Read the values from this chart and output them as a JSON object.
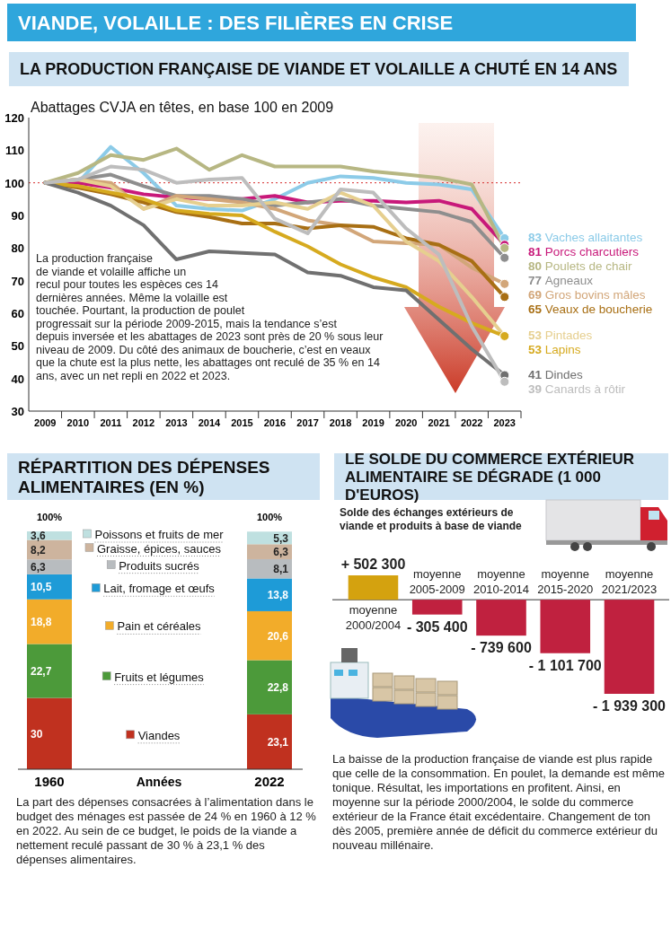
{
  "chart_data": [
    {
      "type": "line",
      "title": "VIANDE, VOLAILLE : DES FILIÈRES EN CRISE",
      "subtitle": "LA PRODUCTION FRANÇAISE DE VIANDE ET VOLAILLE A CHUTÉ EN 14 ANS",
      "ylabel": "Abattages CVJA en têtes, en base 100 en 2009",
      "categories": [
        "2009",
        "2010",
        "2011",
        "2012",
        "2013",
        "2014",
        "2015",
        "2016",
        "2017",
        "2018",
        "2019",
        "2020",
        "2021",
        "2022",
        "2023"
      ],
      "ylim": [
        30,
        120
      ],
      "yticks": [
        30,
        40,
        50,
        60,
        70,
        80,
        90,
        100,
        110,
        120
      ],
      "legend": "right",
      "ref_lines": [
        {
          "axis": "y",
          "value": 100,
          "color": "#d62d2d",
          "line_style": "dotted"
        }
      ],
      "series": [
        {
          "name": "Vaches allaitantes",
          "color": "#8ccbe8",
          "values": [
            100,
            100,
            111,
            103,
            93,
            92,
            91.5,
            95,
            100,
            102,
            101.5,
            100,
            99.5,
            98,
            83
          ],
          "value_labels": [
            null,
            null,
            null,
            null,
            null,
            null,
            null,
            null,
            null,
            null,
            null,
            null,
            null,
            null,
            "83"
          ]
        },
        {
          "name": "Porcs charcutiers",
          "color": "#c8197a",
          "values": [
            100,
            100,
            98.5,
            96.5,
            95.5,
            95,
            95,
            96,
            94,
            94.5,
            94.5,
            94,
            94.5,
            92,
            81
          ],
          "value_labels": [
            null,
            null,
            null,
            null,
            null,
            null,
            null,
            null,
            null,
            null,
            null,
            null,
            null,
            null,
            "81"
          ]
        },
        {
          "name": "Poulets de chair",
          "color": "#b7b783",
          "values": [
            100,
            103,
            108.5,
            107,
            110.5,
            104,
            108.5,
            105,
            105,
            105,
            103.5,
            102.5,
            101.5,
            99.5,
            80
          ],
          "value_labels": [
            null,
            null,
            null,
            null,
            null,
            null,
            null,
            null,
            null,
            null,
            null,
            null,
            null,
            null,
            "80"
          ]
        },
        {
          "name": "Agneaux",
          "color": "#8e8e8e",
          "values": [
            100,
            101,
            102.5,
            99,
            96,
            96,
            95,
            93,
            94,
            95,
            93,
            92,
            91,
            88,
            77
          ],
          "value_labels": [
            null,
            null,
            null,
            null,
            null,
            null,
            null,
            null,
            null,
            null,
            null,
            null,
            null,
            null,
            "77"
          ]
        },
        {
          "name": "Gros bovins mâles",
          "color": "#d2a679",
          "values": [
            100,
            101,
            100,
            92,
            96,
            95,
            94,
            92,
            88.5,
            87,
            82,
            81.5,
            81,
            74,
            69
          ],
          "value_labels": [
            null,
            null,
            null,
            null,
            null,
            null,
            null,
            null,
            null,
            null,
            null,
            null,
            null,
            null,
            "69"
          ]
        },
        {
          "name": "Veaux de boucherie",
          "color": "#a86f14",
          "values": [
            100,
            98.5,
            96.5,
            94,
            91,
            89.5,
            87.5,
            87.5,
            86,
            87,
            86.5,
            83,
            81,
            76,
            65
          ],
          "value_labels": [
            null,
            null,
            null,
            null,
            null,
            null,
            null,
            null,
            null,
            null,
            null,
            null,
            null,
            null,
            "65"
          ]
        },
        {
          "name": "Pintades",
          "color": "#e6cf8f",
          "values": [
            100,
            101,
            99,
            92,
            95,
            93,
            93,
            94,
            92,
            97,
            93,
            82,
            76,
            65,
            53
          ],
          "value_labels": [
            null,
            null,
            null,
            null,
            null,
            null,
            null,
            null,
            null,
            null,
            null,
            null,
            null,
            null,
            "53"
          ]
        },
        {
          "name": "Lapins",
          "color": "#d6aa1f",
          "values": [
            100,
            99,
            97,
            95,
            91.5,
            90.5,
            90,
            85,
            80.5,
            75,
            71,
            68,
            62,
            57,
            53
          ],
          "value_labels": [
            null,
            null,
            null,
            null,
            null,
            null,
            null,
            null,
            null,
            null,
            null,
            null,
            null,
            null,
            "53"
          ]
        },
        {
          "name": "Dindes",
          "color": "#707070",
          "values": [
            100,
            97,
            93,
            87,
            76.5,
            79,
            78.5,
            78,
            72.5,
            71.5,
            68,
            67,
            58,
            49,
            41
          ],
          "value_labels": [
            null,
            null,
            null,
            null,
            null,
            null,
            null,
            null,
            null,
            null,
            null,
            null,
            null,
            null,
            "41"
          ]
        },
        {
          "name": "Canards à rôtir",
          "color": "#bdbdbd",
          "values": [
            100,
            101,
            105,
            104,
            100,
            101,
            101.5,
            89,
            84.5,
            98,
            97,
            86,
            78,
            56,
            39
          ],
          "value_labels": [
            null,
            null,
            null,
            null,
            null,
            null,
            null,
            null,
            null,
            null,
            null,
            null,
            null,
            null,
            "39"
          ]
        }
      ],
      "annotations": [
        "La production française de viande et volaille affiche un recul pour toutes les espèces ces 14 dernières années. Même la volaille est touchée. Pourtant, la production de poulet progressait sur la période 2009-2015, mais la tendance s’est depuis inversée et les abattages de 2023 sont près de 20 % sous leur niveau de 2009. Du côté des animaux de boucherie, c’est en veaux que la chute est la plus nette, les abattages ont reculé de 35 % en 14 ans, avec un net repli en 2022 et 2023."
      ]
    },
    {
      "type": "bar",
      "stacked": true,
      "title": "RÉPARTITION DES DÉPENSES ALIMENTAIRES (EN %)",
      "xlabel": "Années",
      "legend": "center",
      "categories": [
        "1960",
        "2022"
      ],
      "totals": [
        "100%",
        "100%"
      ],
      "series": [
        {
          "name": "Viandes",
          "color": "#c0311f",
          "values": [
            30,
            23.1
          ],
          "value_labels": [
            "30",
            "23,1"
          ]
        },
        {
          "name": "Fruits et légumes",
          "color": "#4c9a3a",
          "values": [
            22.7,
            22.8
          ],
          "value_labels": [
            "22,7",
            "22,8"
          ]
        },
        {
          "name": "Pain et céréales",
          "color": "#f2ac2a",
          "values": [
            18.8,
            20.6
          ],
          "value_labels": [
            "18,8",
            "20,6"
          ]
        },
        {
          "name": "Lait, fromage et œufs",
          "color": "#1e9bd7",
          "values": [
            10.5,
            13.8
          ],
          "value_labels": [
            "10,5",
            "13,8"
          ]
        },
        {
          "name": "Produits sucrés",
          "color": "#b8bcbf",
          "values": [
            6.3,
            8.1
          ],
          "value_labels": [
            "6,3",
            "8,1"
          ]
        },
        {
          "name": "Graisse, épices, sauces",
          "color": "#cdb49e",
          "values": [
            8.2,
            6.3
          ],
          "value_labels": [
            "8,2",
            "6,3"
          ]
        },
        {
          "name": "Poissons et fruits de mer",
          "color": "#bfe0e0",
          "values": [
            3.6,
            5.3
          ],
          "value_labels": [
            "3,6",
            "5,3"
          ]
        }
      ],
      "annotations": [
        "La part des dépenses consacrées à l’alimentation dans le budget des ménages est passée de 24 % en 1960 à 12 % en 2022. Au sein de ce budget, le poids de la viande a nettement reculé passant de 30 % à 23,1 % des dépenses alimentaires."
      ]
    },
    {
      "type": "bar",
      "title": "LE SOLDE DU COMMERCE EXTÉRIEUR ALIMENTAIRE SE DÉGRADE (1 000 D'EUROS)",
      "subtitle": "Solde des échanges extérieurs de viande et produits à base de viande",
      "categories": [
        "moyenne 2000/2004",
        "moyenne 2005-2009",
        "moyenne 2010-2014",
        "moyenne 2015-2020",
        "moyenne 2021/2023"
      ],
      "values": [
        502300,
        -305400,
        -739600,
        -1101700,
        -1939300
      ],
      "colors": [
        "#d4a20f",
        "#c0213f",
        "#c0213f",
        "#c0213f",
        "#c0213f"
      ],
      "value_labels": [
        "+ 502 300",
        "- 305 400",
        "- 739 600",
        "- 1 101 700",
        "- 1 939 300"
      ],
      "annotations": [
        "La baisse de la production française de viande est plus rapide que celle de la consommation. En poulet, la demande est même tonique. Résultat, les importations en profitent. Ainsi, en moyenne sur la période 2000/2004, le solde du commerce extérieur de la France était excédentaire. Changement de ton dès 2005, première année de déficit du commerce extérieur du nouveau millénaire."
      ]
    }
  ]
}
